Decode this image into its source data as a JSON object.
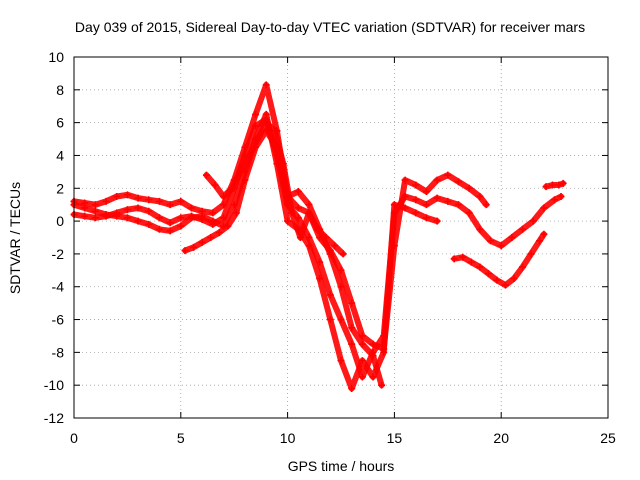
{
  "chart_data": {
    "type": "scatter",
    "title": "Day 039 of 2015, Sidereal Day-to-day VTEC variation (SDTVAR) for receiver mars",
    "xlabel": "GPS time / hours",
    "ylabel": "SDTVAR / TECUs",
    "xlim": [
      0,
      25
    ],
    "ylim": [
      -12,
      10
    ],
    "xticks": [
      "0",
      "5",
      "10",
      "15",
      "20",
      "25"
    ],
    "yticks": [
      "10",
      "8",
      "6",
      "4",
      "2",
      "0",
      "-2",
      "-4",
      "-6",
      "-8",
      "-10",
      "-12"
    ],
    "grid": true,
    "marker": "plus",
    "color": "#ff0000",
    "series": [
      {
        "x": [
          0,
          0.5,
          1,
          1.5,
          2,
          2.5,
          3,
          3.5,
          4,
          4.5,
          5,
          5.5,
          6,
          6.5,
          7,
          7.5,
          8,
          8.5,
          9,
          9.5,
          10,
          10.5,
          11,
          11.5,
          12,
          12.5,
          13,
          13.5,
          14,
          14.5,
          15,
          15.5,
          16,
          16.5,
          17,
          17.5,
          18,
          18.5,
          19,
          19.3
        ],
        "y": [
          1.2,
          1.1,
          1.0,
          1.2,
          1.5,
          1.6,
          1.4,
          1.3,
          1.2,
          1.0,
          1.2,
          0.8,
          0.6,
          0.5,
          1.0,
          2.5,
          4.5,
          6.5,
          8.3,
          5.5,
          1.5,
          0.8,
          0.5,
          -1.0,
          -1.8,
          -3.0,
          -5.0,
          -7.0,
          -7.5,
          -7.8,
          -1.5,
          2.5,
          2.2,
          1.8,
          2.5,
          2.8,
          2.4,
          2.0,
          1.5,
          1.0
        ]
      },
      {
        "x": [
          0,
          0.5,
          1,
          1.5,
          2,
          2.5,
          3,
          3.5,
          4,
          4.5,
          5,
          5.5,
          6,
          6.5,
          7,
          7.5,
          8,
          8.5,
          9,
          9.5,
          10,
          10.5,
          11,
          11.5,
          12,
          12.5,
          13,
          13.5,
          14,
          14.5,
          15,
          15.5,
          16,
          16.5,
          17,
          17.5,
          18,
          18.5,
          19,
          19.5,
          20,
          20.5,
          21,
          21.5,
          22,
          22.5,
          22.8
        ],
        "y": [
          0.4,
          0.3,
          0.2,
          0.3,
          0.5,
          0.7,
          0.8,
          0.6,
          0.2,
          -0.1,
          0.2,
          0.3,
          0.1,
          -0.2,
          0.2,
          2.0,
          4.0,
          5.8,
          6.2,
          4.0,
          1.0,
          0.2,
          -1.0,
          -2.5,
          -4.5,
          -6.0,
          -7.5,
          -9.5,
          -8.0,
          -7.0,
          0.5,
          1.5,
          1.3,
          1.0,
          1.4,
          1.2,
          1.0,
          0.5,
          -0.5,
          -1.2,
          -1.5,
          -1.0,
          -0.5,
          0.0,
          0.8,
          1.3,
          1.5
        ]
      },
      {
        "x": [
          0,
          0.5,
          1,
          1.5,
          2,
          2.5,
          3,
          3.5,
          4,
          4.5,
          5,
          5.5,
          6,
          6.5,
          7,
          7.5,
          8,
          8.5,
          9,
          9.5,
          10,
          10.5,
          11,
          11.5,
          12,
          12.5,
          13,
          13.5,
          14,
          14.5,
          15,
          15.5,
          16,
          16.5,
          17
        ],
        "y": [
          1.0,
          0.8,
          0.6,
          0.4,
          0.3,
          0.2,
          0.0,
          -0.2,
          -0.5,
          -0.6,
          -0.3,
          0.2,
          0.3,
          0.0,
          -0.3,
          1.0,
          3.0,
          5.0,
          6.5,
          3.5,
          0.0,
          -0.5,
          -1.5,
          -3.5,
          -6.0,
          -8.5,
          -10.2,
          -8.5,
          -9.5,
          -8.0,
          1.0,
          0.8,
          0.5,
          0.2,
          0.0
        ]
      },
      {
        "x": [
          5.2,
          5.6,
          6,
          6.4,
          6.8,
          7.2,
          7.6,
          8,
          8.5,
          9,
          9.5,
          10,
          10.5,
          11,
          11.5,
          12,
          12.5,
          13,
          13.5,
          14,
          14.4
        ],
        "y": [
          -1.8,
          -1.6,
          -1.3,
          -1.0,
          -0.7,
          -0.3,
          0.5,
          2.5,
          4.5,
          5.5,
          4.5,
          1.5,
          1.8,
          1.0,
          -0.5,
          -2.0,
          -4.0,
          -6.5,
          -7.5,
          -8.2,
          -10.0
        ]
      },
      {
        "x": [
          6.2,
          6.6,
          7,
          7.4,
          7.8,
          8.2,
          8.6,
          9,
          9.4,
          9.8,
          10.2,
          10.6,
          11,
          11.4,
          11.8,
          12.2,
          12.6
        ],
        "y": [
          2.8,
          2.2,
          1.5,
          2.0,
          3.0,
          4.0,
          5.0,
          6.0,
          5.5,
          3.5,
          0.5,
          -1.0,
          0.5,
          -0.5,
          -1.0,
          -1.5,
          -2.0
        ]
      },
      {
        "x": [
          17.8,
          18.2,
          18.6,
          19,
          19.4,
          19.8,
          20.2,
          20.6,
          21,
          21.4,
          21.8,
          22
        ],
        "y": [
          -2.3,
          -2.2,
          -2.5,
          -2.8,
          -3.2,
          -3.6,
          -3.9,
          -3.5,
          -2.8,
          -2.0,
          -1.2,
          -0.8
        ]
      },
      {
        "x": [
          22.1,
          22.4,
          22.7,
          22.9
        ],
        "y": [
          2.1,
          2.2,
          2.2,
          2.3
        ]
      }
    ]
  }
}
